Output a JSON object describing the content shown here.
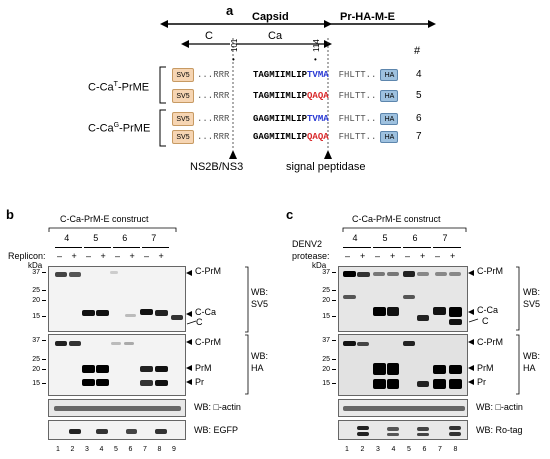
{
  "panel_a": {
    "letter": "a",
    "capsid_label": "Capsid",
    "prm_label": "Pr-HA-M-E",
    "c_label": "C",
    "ca_label": "Ca",
    "pos_101": "101",
    "pos_114": "114",
    "hash": "#",
    "rows": [
      {
        "tag": "SV5",
        "pre": "...RRR",
        "seq": "TAGMIIMLIP",
        "tail": "TVMA",
        "tail_color": "blue",
        "post": "FHLTT..",
        "ha": "HA",
        "num": "4"
      },
      {
        "tag": "SV5",
        "pre": "...RRR",
        "seq": "TAGMIIMLIP",
        "tail": "QAQA",
        "tail_color": "red",
        "post": "FHLTT..",
        "ha": "HA",
        "num": "5"
      },
      {
        "tag": "SV5",
        "pre": "...RRR",
        "seq": "GAGMIIMLIP",
        "tail": "TVMA",
        "tail_color": "blue",
        "post": "FHLTT..",
        "ha": "HA",
        "num": "6"
      },
      {
        "tag": "SV5",
        "pre": "...RRR",
        "seq": "GAGMIIMLIP",
        "tail": "QAQA",
        "tail_color": "red",
        "post": "FHLTT..",
        "ha": "HA",
        "num": "7"
      }
    ],
    "group1_label_main": "C-Ca",
    "group1_label_sup": "T",
    "group1_label_end": "-PrME",
    "group2_label_main": "C-Ca",
    "group2_label_sup": "G",
    "group2_label_end": "-PrME",
    "ns2b_label": "NS2B/NS3",
    "signal_label": "signal peptidase"
  },
  "panel_b": {
    "letter": "b",
    "construct_label": "C-Ca-PrM-E construct",
    "treatment_label": "Replicon:",
    "groups": [
      "4",
      "5",
      "6",
      "7"
    ],
    "signs": [
      "–",
      "+",
      "–",
      "+",
      "–",
      "+",
      "–",
      "+"
    ],
    "kda": "kDa",
    "mw_top": [
      "37",
      "25",
      "20",
      "15"
    ],
    "mw_mid": [
      "37",
      "25",
      "20",
      "15"
    ],
    "bands_top": [
      "C-PrM",
      "C-Ca",
      "C"
    ],
    "wb_top_1": "WB:",
    "wb_top_2": "SV5",
    "bands_mid": [
      "C-PrM",
      "PrM",
      "Pr"
    ],
    "wb_mid_1": "WB:",
    "wb_mid_2": "HA",
    "actin_label": "WB: □-actin",
    "ctrl_label": "WB: EGFP",
    "lanes": [
      "1",
      "2",
      "3",
      "4",
      "5",
      "6",
      "7",
      "8",
      "9"
    ]
  },
  "panel_c": {
    "letter": "c",
    "construct_label": "C-Ca-PrM-E construct",
    "treatment_label_1": "DENV2",
    "treatment_label_2": "protease:",
    "groups": [
      "4",
      "5",
      "6",
      "7"
    ],
    "signs": [
      "–",
      "+",
      "–",
      "+",
      "–",
      "+",
      "–",
      "+"
    ],
    "kda": "kDa",
    "mw_top": [
      "37",
      "25",
      "20",
      "15"
    ],
    "mw_mid": [
      "37",
      "25",
      "20",
      "15"
    ],
    "bands_top": [
      "C-PrM",
      "C-Ca",
      "C"
    ],
    "wb_top_1": "WB:",
    "wb_top_2": "SV5",
    "bands_mid": [
      "C-PrM",
      "PrM",
      "Pr"
    ],
    "wb_mid_1": "WB:",
    "wb_mid_2": "HA",
    "actin_label": "WB: □-actin",
    "ctrl_label": "WB: Ro-tag",
    "lanes": [
      "1",
      "2",
      "3",
      "4",
      "5",
      "6",
      "7",
      "8"
    ]
  }
}
